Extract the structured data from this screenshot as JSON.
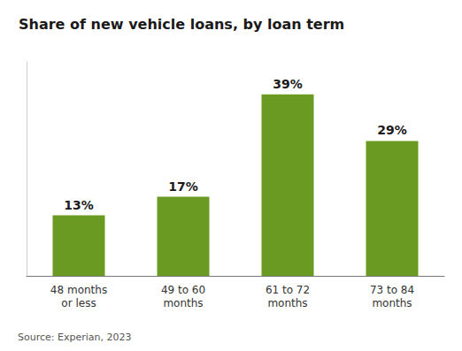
{
  "chart_data": {
    "type": "bar",
    "title": "Share of new vehicle loans, by loan term",
    "categories": [
      "48 months\nor less",
      "49 to 60\nmonths",
      "61 to 72\nmonths",
      "73 to 84\nmonths"
    ],
    "values": [
      13,
      17,
      39,
      29
    ],
    "value_labels": [
      "13%",
      "17%",
      "39%",
      "29%"
    ],
    "data_labels": true,
    "color": "#6a9a22",
    "ylim": [
      0,
      46
    ],
    "grid": false,
    "tick_labels": "x",
    "annotations": [
      "Source: Experian, 2023"
    ]
  }
}
